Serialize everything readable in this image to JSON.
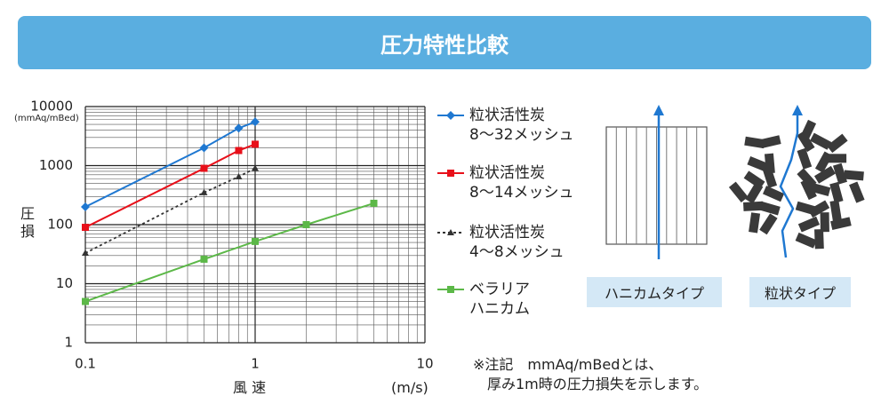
{
  "header": {
    "title": "圧力特性比較"
  },
  "chart_data": {
    "type": "line",
    "xlabel": "風 速",
    "xunit": "(m/s)",
    "ylabel": "圧損",
    "yunit": "(mmAq/mBed)",
    "xscale": "log",
    "yscale": "log",
    "grid": true,
    "xlim": [
      0.1,
      10
    ],
    "ylim": [
      1,
      10000
    ],
    "xticks": [
      {
        "value": 0.1,
        "label": "0.1"
      },
      1,
      10
    ],
    "yticks": [
      1,
      10,
      100,
      1000,
      10000
    ],
    "series": [
      {
        "name": "粒状活性炭\n8〜32メッシュ",
        "color": "#1f78d1",
        "marker": "diamond",
        "dash": false,
        "x": [
          0.1,
          0.5,
          0.8,
          1
        ],
        "values": [
          200,
          2000,
          4300,
          5500
        ]
      },
      {
        "name": "粒状活性炭\n8〜14メッシュ",
        "color": "#e8101a",
        "marker": "square",
        "dash": false,
        "x": [
          0.1,
          0.5,
          0.8,
          1
        ],
        "values": [
          90,
          900,
          1800,
          2300
        ]
      },
      {
        "name": "粒状活性炭\n4〜8メッシュ",
        "color": "#333333",
        "marker": "triangle",
        "dash": true,
        "x": [
          0.1,
          0.5,
          0.8,
          1
        ],
        "values": [
          33,
          350,
          650,
          900
        ]
      },
      {
        "name": "ベラリア\nハニカム",
        "color": "#5cb848",
        "marker": "square",
        "dash": false,
        "x": [
          0.1,
          0.5,
          1,
          2,
          5
        ],
        "values": [
          5,
          26,
          52,
          100,
          230
        ]
      }
    ]
  },
  "note": "※注記　mmAq/mBedとは、\n　厚み1m時の圧力損失を示します。",
  "diagrams": {
    "honeycomb_label": "ハニカムタイプ",
    "granular_label": "粒状タイプ"
  }
}
